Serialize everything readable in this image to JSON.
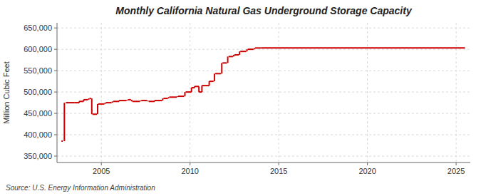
{
  "chart_data": {
    "type": "step",
    "title": "Monthly California Natural Gas Underground Storage Capacity",
    "ylabel": "Million Cubic Feet",
    "source": "Source: U.S. Energy Information Administration",
    "color": "#cc0000",
    "grid": true,
    "xlim": [
      2002.5,
      2025.8
    ],
    "ylim": [
      335000,
      662000
    ],
    "xticks": [
      2005,
      2010,
      2015,
      2020,
      2025
    ],
    "yticks": [
      {
        "value": 350000,
        "label": "350,000"
      },
      {
        "value": 400000,
        "label": "400,000"
      },
      {
        "value": 450000,
        "label": "450,000"
      },
      {
        "value": 500000,
        "label": "500,000"
      },
      {
        "value": 550000,
        "label": "550,000"
      },
      {
        "value": 600000,
        "label": "600,000"
      },
      {
        "value": 650000,
        "label": "650,000"
      }
    ],
    "x": [
      [
        2002.75,
        2002.83
      ],
      [
        2003.0,
        2003.5
      ],
      [
        2003.5,
        2003.75
      ],
      [
        2003.75,
        2004.0
      ],
      [
        2004.0,
        2004.25
      ],
      [
        2004.33,
        2004.42
      ],
      [
        2004.5,
        2004.75
      ],
      [
        2004.83,
        2005.17
      ],
      [
        2005.25,
        2005.58
      ],
      [
        2005.67,
        2006.0
      ],
      [
        2006.0,
        2006.42
      ],
      [
        2006.5,
        2006.67
      ],
      [
        2006.75,
        2007.17
      ],
      [
        2007.25,
        2007.58
      ],
      [
        2007.67,
        2008.0
      ],
      [
        2008.0,
        2008.42
      ],
      [
        2008.5,
        2008.75
      ],
      [
        2008.83,
        2009.25
      ],
      [
        2009.33,
        2009.67
      ],
      [
        2009.75,
        2010.08
      ],
      [
        2010.08,
        2010.25
      ],
      [
        2010.25,
        2010.5
      ],
      [
        2010.5,
        2010.67
      ],
      [
        2010.67,
        2011.08
      ],
      [
        2011.08,
        2011.33
      ],
      [
        2011.42,
        2011.75
      ],
      [
        2011.83,
        2012.08
      ],
      [
        2012.17,
        2012.42
      ],
      [
        2012.5,
        2012.75
      ],
      [
        2012.83,
        2013.17
      ],
      [
        2013.25,
        2013.58
      ],
      [
        2013.67,
        2014.0
      ],
      [
        2014.0,
        2025.5
      ]
    ],
    "values": [
      385000,
      475000,
      475000,
      478000,
      482000,
      485000,
      448000,
      472000,
      475000,
      478000,
      480000,
      482000,
      478000,
      480000,
      478000,
      480000,
      485000,
      488000,
      490000,
      500000,
      510000,
      513000,
      500000,
      515000,
      525000,
      543000,
      568000,
      583000,
      587000,
      595000,
      600000,
      603000,
      603000
    ]
  }
}
